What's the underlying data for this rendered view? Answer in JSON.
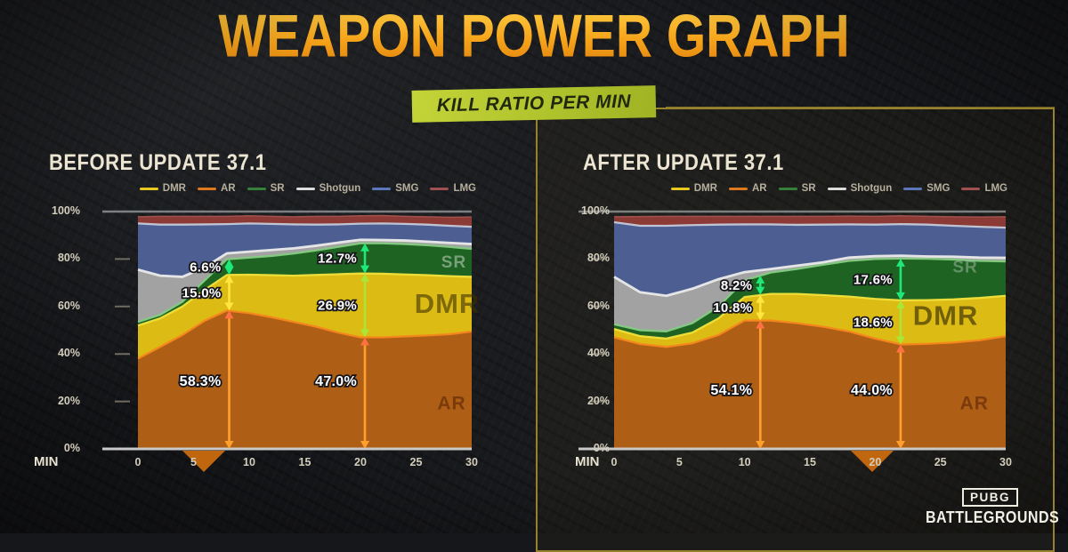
{
  "title": "WEAPON POWER GRAPH",
  "subtitle": "KILL RATIO PER MIN",
  "colors": {
    "background": "#16171a",
    "title_gradient_top": "#ffd24a",
    "title_gradient_bottom": "#dd7d0d",
    "badge_bg": "#aec22c",
    "badge_text": "#22270f",
    "panel_frame": "#96822c",
    "heading_text": "#ece5d2",
    "axis_text": "#d3cdbc",
    "axis_marker": "#c0660f"
  },
  "legend": [
    {
      "label": "DMR",
      "color": "#e8c81f"
    },
    {
      "label": "AR",
      "color": "#e0781e"
    },
    {
      "label": "SR",
      "color": "#35803a"
    },
    {
      "label": "Shotgun",
      "color": "#dcdcdc"
    },
    {
      "label": "SMG",
      "color": "#5c76bc"
    },
    {
      "label": "LMG",
      "color": "#a05050"
    }
  ],
  "panels": [
    {
      "heading": "BEFORE UPDATE 37.1"
    },
    {
      "heading": "AFTER UPDATE 37.1"
    }
  ],
  "logo": {
    "pubg": "PUBG",
    "battlegrounds": "BATTLEGROUNDS"
  },
  "chart_data": [
    {
      "type": "area",
      "stacked": true,
      "title": "BEFORE UPDATE 37.1",
      "xlabel": "MIN",
      "x": [
        0,
        2,
        4,
        6,
        8,
        10,
        12,
        14,
        16,
        18,
        20,
        22,
        24,
        26,
        28,
        30
      ],
      "xticks": [
        0,
        5,
        10,
        15,
        20,
        25,
        30
      ],
      "ylim": [
        0,
        100
      ],
      "yticks": [
        {
          "label": "100%",
          "pct": 100
        },
        {
          "label": "80%",
          "pct": 80
        },
        {
          "label": "60%",
          "pct": 60
        },
        {
          "label": "40%",
          "pct": 40
        },
        {
          "label": "20%",
          "pct": 20
        },
        {
          "label": "0%",
          "pct": 0
        }
      ],
      "series": [
        {
          "name": "AR",
          "fill": "#af5e16",
          "edge": "#f5871c",
          "values": [
            38,
            43,
            48,
            54,
            58.3,
            57.2,
            55.5,
            53.5,
            51.5,
            49,
            47,
            47,
            47.4,
            47.8,
            48.3,
            49.5
          ]
        },
        {
          "name": "DMR",
          "fill": "#dcbb14",
          "edge": "#f2e13c",
          "values": [
            14,
            12,
            12,
            13,
            15,
            16.2,
            17.7,
            19.5,
            21.8,
            24.6,
            26.9,
            26.8,
            26.1,
            25.4,
            24.5,
            23
          ]
        },
        {
          "name": "SR",
          "fill": "#1e6322",
          "edge": "#85cc83",
          "values": [
            1.5,
            1.5,
            2,
            4,
            6.6,
            7.2,
            8.1,
            9.3,
            10.3,
            11.5,
            12.7,
            12.8,
            12.8,
            12.6,
            12.3,
            11.8
          ]
        },
        {
          "name": "Shotgun",
          "fill": "#a2a2a2",
          "edge": "#ebebeb",
          "values": [
            22,
            16.5,
            10.5,
            5.5,
            2.5,
            2.5,
            2.5,
            2.2,
            2,
            1.8,
            1.5,
            1.4,
            1.5,
            1.5,
            1.7,
            2
          ]
        },
        {
          "name": "SMG",
          "fill": "#4c5e92",
          "edge": "#c5cad9",
          "values": [
            19.5,
            21.5,
            22,
            18.1,
            12.3,
            11.9,
            11,
            10.1,
            8.9,
            7.7,
            6.8,
            7,
            7,
            7.2,
            7.2,
            7.3
          ]
        },
        {
          "name": "LMG",
          "fill": "#8b3a36",
          "edge": "#a35450",
          "values": [
            2.8,
            3.5,
            3.5,
            3.4,
            3.3,
            3.2,
            3.2,
            3.2,
            3.5,
            3.4,
            3.3,
            3.3,
            3.2,
            3.3,
            3.6,
            4.1
          ]
        }
      ],
      "annotations": [
        {
          "x": 8.2,
          "items": [
            {
              "label": "6.6%",
              "y0": 73.3,
              "y1": 79.9,
              "color": "#1fe878"
            },
            {
              "label": "15.0%",
              "y0": 58.3,
              "y1": 73.3,
              "color": "#ffe53e"
            },
            {
              "label": "58.3%",
              "y0": 0,
              "y1": 58.3,
              "color": "#ffa02e",
              "head_top": "#ff7043",
              "label_pct": 28.5
            }
          ]
        },
        {
          "x": 20.4,
          "items": [
            {
              "label": "12.7%",
              "y0": 73.9,
              "y1": 86.6,
              "color": "#1fe878"
            },
            {
              "label": "26.9%",
              "y0": 47.0,
              "y1": 73.9,
              "color": "#aae636"
            },
            {
              "label": "47.0%",
              "y0": 0,
              "y1": 47.0,
              "color": "#ffa02e",
              "head_top": "#ff7043",
              "label_pct": 28.5
            }
          ]
        }
      ],
      "band_labels": [
        {
          "text": "SR",
          "x": 28.4,
          "y": 79,
          "color": "rgba(196,212,196,0.55)",
          "size": 19
        },
        {
          "text": "DMR",
          "x": 27.8,
          "y": 61.5,
          "color": "rgba(62,50,2,0.6)",
          "size": 31
        },
        {
          "text": "AR",
          "x": 28.2,
          "y": 19.5,
          "color": "rgba(80,30,5,0.55)",
          "size": 21
        }
      ],
      "marker_x": 5.9
    },
    {
      "type": "area",
      "stacked": true,
      "title": "AFTER UPDATE 37.1",
      "xlabel": "MIN",
      "x": [
        0,
        2,
        4,
        6,
        8,
        10,
        12,
        14,
        16,
        18,
        20,
        22,
        24,
        26,
        28,
        30
      ],
      "xticks": [
        0,
        5,
        10,
        15,
        20,
        25,
        30
      ],
      "ylim": [
        0,
        100
      ],
      "yticks": [
        {
          "label": "100%",
          "pct": 100
        },
        {
          "label": "80%",
          "pct": 80
        },
        {
          "label": "60%",
          "pct": 60
        },
        {
          "label": "40%",
          "pct": 40
        },
        {
          "label": "20%",
          "pct": 20
        },
        {
          "label": "0%",
          "pct": 0
        }
      ],
      "series": [
        {
          "name": "AR",
          "fill": "#af5e16",
          "edge": "#f5871c",
          "values": [
            47,
            44.2,
            43,
            44.5,
            48,
            54.1,
            54.1,
            53,
            51.5,
            49.5,
            46.5,
            44,
            44.3,
            44.8,
            45.8,
            47.5
          ]
        },
        {
          "name": "DMR",
          "fill": "#dcbb14",
          "edge": "#f2e13c",
          "values": [
            3.5,
            3.3,
            3.5,
            4.5,
            7,
            9.9,
            11.2,
            12.3,
            13.3,
            14.7,
            16.7,
            18.6,
            18.4,
            18.2,
            17.8,
            17
          ]
        },
        {
          "name": "SR",
          "fill": "#1e6322",
          "edge": "#85cc83",
          "values": [
            2,
            2.5,
            3,
            4,
            5,
            7,
            9,
            10.5,
            12.8,
            15,
            16.8,
            17.6,
            17.4,
            16.8,
            15.6,
            14.5
          ]
        },
        {
          "name": "Shotgun",
          "fill": "#a2a2a2",
          "edge": "#ebebeb",
          "values": [
            20,
            16,
            15,
            14.5,
            11.5,
            3.5,
            1.5,
            1.4,
            1,
            1.4,
            1.2,
            1.2,
            1,
            1.2,
            1.4,
            1.5
          ]
        },
        {
          "name": "SMG",
          "fill": "#4c5e92",
          "edge": "#c5cad9",
          "values": [
            23,
            28,
            29.5,
            26.8,
            23,
            20.1,
            18.8,
            17.2,
            15.9,
            14,
            13.3,
            13.3,
            13.4,
            13,
            13,
            12.7
          ]
        },
        {
          "name": "LMG",
          "fill": "#8b3a36",
          "edge": "#a35450",
          "values": [
            2.3,
            3.9,
            4,
            3.7,
            3.5,
            3.4,
            3.4,
            3.6,
            3.5,
            3.5,
            3.5,
            3.5,
            3.5,
            3.8,
            4.1,
            4.6
          ]
        }
      ],
      "annotations": [
        {
          "x": 11.2,
          "items": [
            {
              "label": "8.2%",
              "y0": 64.9,
              "y1": 73.1,
              "color": "#1fe878"
            },
            {
              "label": "10.8%",
              "y0": 54.1,
              "y1": 64.9,
              "color": "#ffe53e"
            },
            {
              "label": "54.1%",
              "y0": 0,
              "y1": 54.1,
              "color": "#ffa02e",
              "head_top": "#ff7043",
              "label_pct": 24.7
            }
          ]
        },
        {
          "x": 21.95,
          "items": [
            {
              "label": "17.6%",
              "y0": 62.6,
              "y1": 80.2,
              "color": "#1fe878"
            },
            {
              "label": "18.6%",
              "y0": 44.0,
              "y1": 62.6,
              "color": "#aae636"
            },
            {
              "label": "44.0%",
              "y0": 0,
              "y1": 44.0,
              "color": "#ffa02e",
              "head_top": "#ff7043",
              "label_pct": 24.7
            }
          ]
        }
      ],
      "band_labels": [
        {
          "text": "SR",
          "x": 26.9,
          "y": 77,
          "color": "rgba(170,190,170,0.5)",
          "size": 19
        },
        {
          "text": "DMR",
          "x": 25.4,
          "y": 56.5,
          "color": "rgba(55,45,2,0.65)",
          "size": 31
        },
        {
          "text": "AR",
          "x": 27.6,
          "y": 19.5,
          "color": "rgba(80,30,5,0.55)",
          "size": 21
        }
      ],
      "marker_x": 19.8
    }
  ]
}
